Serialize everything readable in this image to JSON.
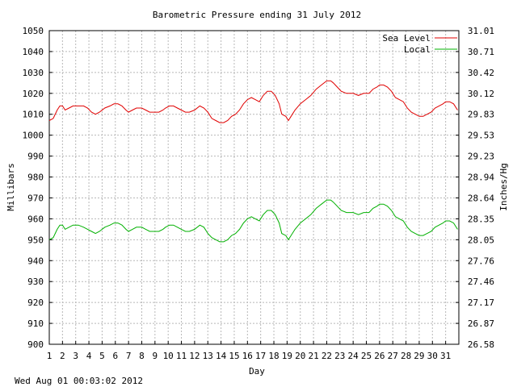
{
  "chart_data": {
    "type": "line",
    "title": "Barometric Pressure ending 31 July 2012",
    "xlabel": "Day",
    "ylabel": "Millibars",
    "y2label": "Inches/Hg",
    "footer": "Wed Aug 01 00:03:02 2012",
    "xlim": [
      1,
      32
    ],
    "ylim": [
      900,
      1050
    ],
    "x_ticks": [
      "1",
      "2",
      "3",
      "4",
      "5",
      "6",
      "7",
      "8",
      "9",
      "10",
      "11",
      "12",
      "13",
      "14",
      "15",
      "16",
      "17",
      "18",
      "19",
      "20",
      "21",
      "22",
      "23",
      "24",
      "25",
      "26",
      "27",
      "28",
      "29",
      "30",
      "31"
    ],
    "y_ticks": [
      "900",
      "910",
      "920",
      "930",
      "940",
      "950",
      "960",
      "970",
      "980",
      "990",
      "1000",
      "1010",
      "1020",
      "1030",
      "1040",
      "1050"
    ],
    "y2_ticks": [
      "26.58",
      "26.87",
      "27.17",
      "27.46",
      "27.76",
      "28.05",
      "28.35",
      "28.64",
      "28.94",
      "29.23",
      "29.53",
      "29.83",
      "30.12",
      "30.42",
      "30.71",
      "31.01"
    ],
    "grid": true,
    "legend_position": "top-right",
    "series": [
      {
        "name": "Sea Level",
        "color": "#e00000",
        "points": [
          [
            1.0,
            1007
          ],
          [
            1.3,
            1008
          ],
          [
            1.6,
            1012
          ],
          [
            1.8,
            1014
          ],
          [
            2.0,
            1014
          ],
          [
            2.2,
            1012
          ],
          [
            2.5,
            1013
          ],
          [
            2.8,
            1014
          ],
          [
            3.2,
            1014
          ],
          [
            3.6,
            1014
          ],
          [
            3.9,
            1013
          ],
          [
            4.2,
            1011
          ],
          [
            4.5,
            1010
          ],
          [
            4.8,
            1011
          ],
          [
            5.2,
            1013
          ],
          [
            5.6,
            1014
          ],
          [
            5.9,
            1015
          ],
          [
            6.2,
            1015
          ],
          [
            6.5,
            1014
          ],
          [
            6.8,
            1012
          ],
          [
            7.0,
            1011
          ],
          [
            7.3,
            1012
          ],
          [
            7.6,
            1013
          ],
          [
            8.0,
            1013
          ],
          [
            8.3,
            1012
          ],
          [
            8.6,
            1011
          ],
          [
            9.0,
            1011
          ],
          [
            9.3,
            1011
          ],
          [
            9.6,
            1012
          ],
          [
            9.8,
            1013
          ],
          [
            10.1,
            1014
          ],
          [
            10.4,
            1014
          ],
          [
            10.7,
            1013
          ],
          [
            11.0,
            1012
          ],
          [
            11.3,
            1011
          ],
          [
            11.6,
            1011
          ],
          [
            12.0,
            1012
          ],
          [
            12.4,
            1014
          ],
          [
            12.7,
            1013
          ],
          [
            13.0,
            1011
          ],
          [
            13.3,
            1008
          ],
          [
            13.6,
            1007
          ],
          [
            13.9,
            1006
          ],
          [
            14.2,
            1006
          ],
          [
            14.5,
            1007
          ],
          [
            14.8,
            1009
          ],
          [
            15.1,
            1010
          ],
          [
            15.4,
            1012
          ],
          [
            15.7,
            1015
          ],
          [
            16.0,
            1017
          ],
          [
            16.3,
            1018
          ],
          [
            16.6,
            1017
          ],
          [
            16.9,
            1016
          ],
          [
            17.2,
            1019
          ],
          [
            17.5,
            1021
          ],
          [
            17.8,
            1021
          ],
          [
            18.1,
            1019
          ],
          [
            18.4,
            1015
          ],
          [
            18.6,
            1010
          ],
          [
            18.9,
            1009
          ],
          [
            19.1,
            1007
          ],
          [
            19.3,
            1009
          ],
          [
            19.6,
            1012
          ],
          [
            20.0,
            1015
          ],
          [
            20.4,
            1017
          ],
          [
            20.8,
            1019
          ],
          [
            21.2,
            1022
          ],
          [
            21.6,
            1024
          ],
          [
            22.0,
            1026
          ],
          [
            22.3,
            1026
          ],
          [
            22.5,
            1025
          ],
          [
            22.8,
            1023
          ],
          [
            23.1,
            1021
          ],
          [
            23.5,
            1020
          ],
          [
            24.0,
            1020
          ],
          [
            24.4,
            1019
          ],
          [
            24.8,
            1020
          ],
          [
            25.2,
            1020
          ],
          [
            25.5,
            1022
          ],
          [
            25.8,
            1023
          ],
          [
            26.0,
            1024
          ],
          [
            26.3,
            1024
          ],
          [
            26.6,
            1023
          ],
          [
            26.9,
            1021
          ],
          [
            27.2,
            1018
          ],
          [
            27.5,
            1017
          ],
          [
            27.8,
            1016
          ],
          [
            28.1,
            1013
          ],
          [
            28.4,
            1011
          ],
          [
            28.7,
            1010
          ],
          [
            29.0,
            1009
          ],
          [
            29.3,
            1009
          ],
          [
            29.6,
            1010
          ],
          [
            29.9,
            1011
          ],
          [
            30.2,
            1013
          ],
          [
            30.5,
            1014
          ],
          [
            30.8,
            1015
          ],
          [
            31.0,
            1016
          ],
          [
            31.3,
            1016
          ],
          [
            31.6,
            1015
          ],
          [
            31.9,
            1012
          ]
        ]
      },
      {
        "name": "Local",
        "color": "#00b000",
        "points": [
          [
            1.0,
            950
          ],
          [
            1.3,
            951
          ],
          [
            1.6,
            955
          ],
          [
            1.8,
            957
          ],
          [
            2.0,
            957
          ],
          [
            2.2,
            955
          ],
          [
            2.5,
            956
          ],
          [
            2.8,
            957
          ],
          [
            3.2,
            957
          ],
          [
            3.6,
            956
          ],
          [
            3.9,
            955
          ],
          [
            4.2,
            954
          ],
          [
            4.5,
            953
          ],
          [
            4.8,
            954
          ],
          [
            5.2,
            956
          ],
          [
            5.6,
            957
          ],
          [
            5.9,
            958
          ],
          [
            6.2,
            958
          ],
          [
            6.5,
            957
          ],
          [
            6.8,
            955
          ],
          [
            7.0,
            954
          ],
          [
            7.3,
            955
          ],
          [
            7.6,
            956
          ],
          [
            8.0,
            956
          ],
          [
            8.3,
            955
          ],
          [
            8.6,
            954
          ],
          [
            9.0,
            954
          ],
          [
            9.3,
            954
          ],
          [
            9.6,
            955
          ],
          [
            9.8,
            956
          ],
          [
            10.1,
            957
          ],
          [
            10.4,
            957
          ],
          [
            10.7,
            956
          ],
          [
            11.0,
            955
          ],
          [
            11.3,
            954
          ],
          [
            11.6,
            954
          ],
          [
            12.0,
            955
          ],
          [
            12.4,
            957
          ],
          [
            12.7,
            956
          ],
          [
            13.0,
            953
          ],
          [
            13.3,
            951
          ],
          [
            13.6,
            950
          ],
          [
            13.9,
            949
          ],
          [
            14.2,
            949
          ],
          [
            14.5,
            950
          ],
          [
            14.8,
            952
          ],
          [
            15.1,
            953
          ],
          [
            15.4,
            955
          ],
          [
            15.7,
            958
          ],
          [
            16.0,
            960
          ],
          [
            16.3,
            961
          ],
          [
            16.6,
            960
          ],
          [
            16.9,
            959
          ],
          [
            17.2,
            962
          ],
          [
            17.5,
            964
          ],
          [
            17.8,
            964
          ],
          [
            18.1,
            962
          ],
          [
            18.4,
            958
          ],
          [
            18.6,
            953
          ],
          [
            18.9,
            952
          ],
          [
            19.1,
            950
          ],
          [
            19.3,
            952
          ],
          [
            19.6,
            955
          ],
          [
            20.0,
            958
          ],
          [
            20.4,
            960
          ],
          [
            20.8,
            962
          ],
          [
            21.2,
            965
          ],
          [
            21.6,
            967
          ],
          [
            22.0,
            969
          ],
          [
            22.3,
            969
          ],
          [
            22.5,
            968
          ],
          [
            22.8,
            966
          ],
          [
            23.1,
            964
          ],
          [
            23.5,
            963
          ],
          [
            24.0,
            963
          ],
          [
            24.4,
            962
          ],
          [
            24.8,
            963
          ],
          [
            25.2,
            963
          ],
          [
            25.5,
            965
          ],
          [
            25.8,
            966
          ],
          [
            26.0,
            967
          ],
          [
            26.3,
            967
          ],
          [
            26.6,
            966
          ],
          [
            26.9,
            964
          ],
          [
            27.2,
            961
          ],
          [
            27.5,
            960
          ],
          [
            27.8,
            959
          ],
          [
            28.1,
            956
          ],
          [
            28.4,
            954
          ],
          [
            28.7,
            953
          ],
          [
            29.0,
            952
          ],
          [
            29.3,
            952
          ],
          [
            29.6,
            953
          ],
          [
            29.9,
            954
          ],
          [
            30.2,
            956
          ],
          [
            30.5,
            957
          ],
          [
            30.8,
            958
          ],
          [
            31.0,
            959
          ],
          [
            31.3,
            959
          ],
          [
            31.6,
            958
          ],
          [
            31.9,
            955
          ]
        ]
      }
    ]
  }
}
